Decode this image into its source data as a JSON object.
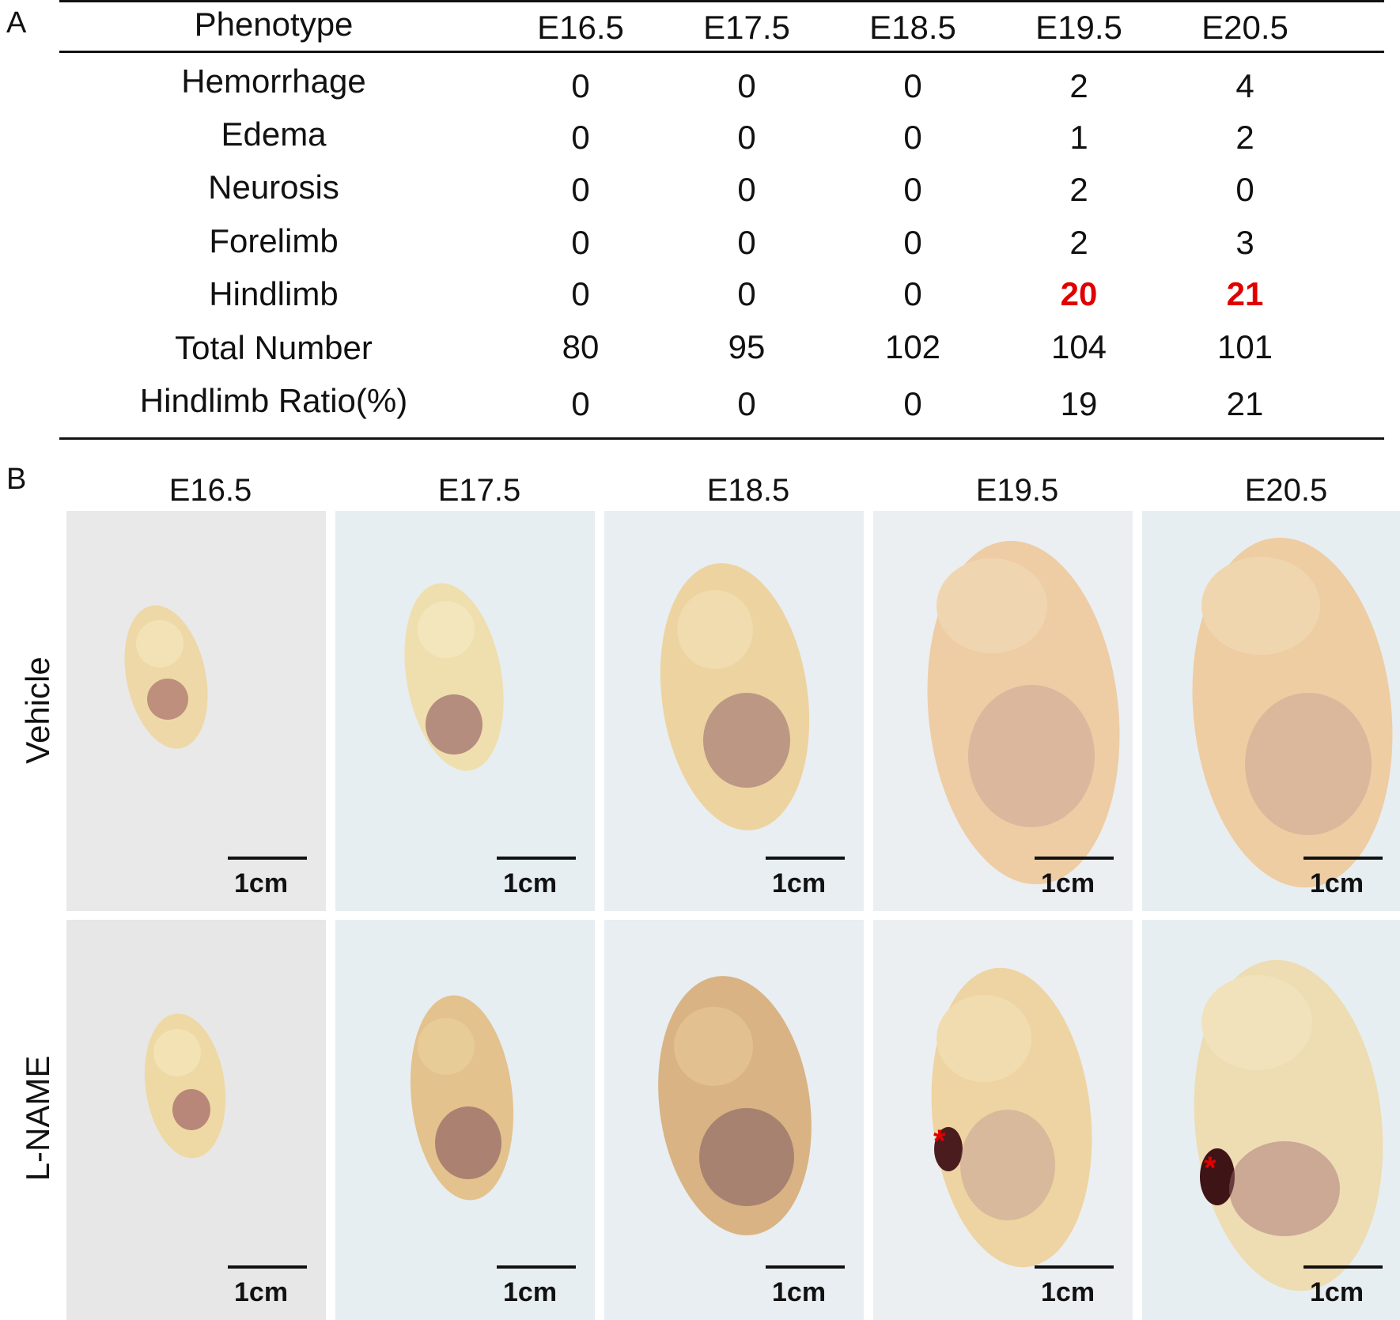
{
  "panel_a": {
    "letter": "A",
    "headers": [
      "Phenotype",
      "E16.5",
      "E17.5",
      "E18.5",
      "E19.5",
      "E20.5"
    ],
    "rows": [
      {
        "label": "Hemorrhage",
        "values": [
          "0",
          "0",
          "0",
          "2",
          "4"
        ]
      },
      {
        "label": "Edema",
        "values": [
          "0",
          "0",
          "0",
          "1",
          "2"
        ]
      },
      {
        "label": "Neurosis",
        "values": [
          "0",
          "0",
          "0",
          "2",
          "0"
        ]
      },
      {
        "label": "Forelimb",
        "values": [
          "0",
          "0",
          "0",
          "2",
          "3"
        ]
      },
      {
        "label": "Hindlimb",
        "values": [
          "0",
          "0",
          "0",
          "20",
          "21"
        ],
        "highlight": [
          "E19.5",
          "E20.5"
        ]
      },
      {
        "label": "Total Number",
        "values": [
          "80",
          "95",
          "102",
          "104",
          "101"
        ]
      },
      {
        "label": "Hindlimb Ratio(%)",
        "values": [
          "0",
          "0",
          "0",
          "19",
          "21"
        ]
      }
    ],
    "highlight_color": "#e00000"
  },
  "panel_b": {
    "letter": "B",
    "columns": [
      "E16.5",
      "E17.5",
      "E18.5",
      "E19.5",
      "E20.5"
    ],
    "rows": [
      "Vehicle",
      "L-NAME"
    ],
    "scale_bar_label": "1cm",
    "marker": "*",
    "marker_color": "#e00000"
  }
}
